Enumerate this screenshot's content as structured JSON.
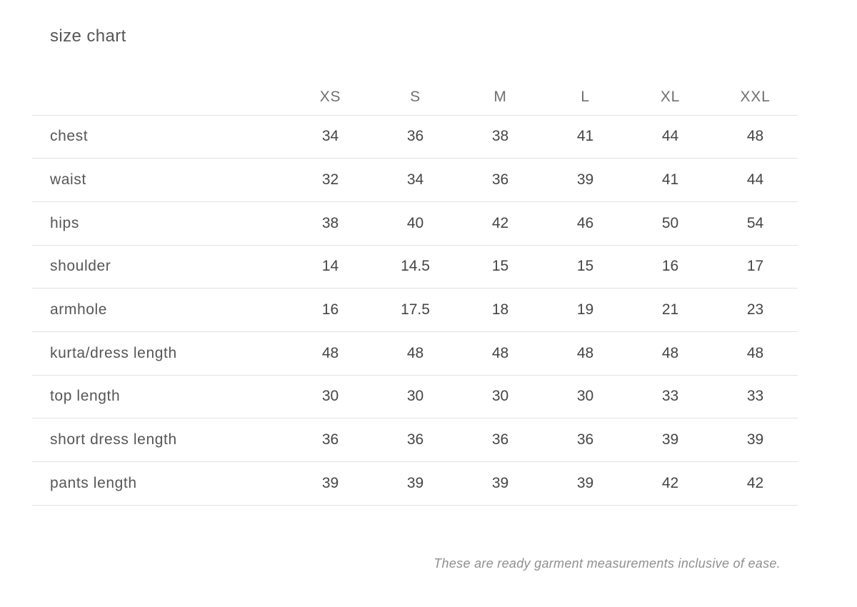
{
  "title": "size chart",
  "footnote": "These are ready garment measurements inclusive of ease.",
  "colors": {
    "background": "#ffffff",
    "title_text": "#565656",
    "header_text": "#6f6f6f",
    "cell_text": "#454545",
    "divider": "#e2e2e2",
    "footnote_text": "#8f8f8f"
  },
  "chart_data": {
    "type": "table",
    "title": "size chart",
    "columns": [
      "XS",
      "S",
      "M",
      "L",
      "XL",
      "XXL"
    ],
    "rows": [
      {
        "label": "chest",
        "values": [
          "34",
          "36",
          "38",
          "41",
          "44",
          "48"
        ]
      },
      {
        "label": "waist",
        "values": [
          "32",
          "34",
          "36",
          "39",
          "41",
          "44"
        ]
      },
      {
        "label": "hips",
        "values": [
          "38",
          "40",
          "42",
          "46",
          "50",
          "54"
        ]
      },
      {
        "label": "shoulder",
        "values": [
          "14",
          "14.5",
          "15",
          "15",
          "16",
          "17"
        ]
      },
      {
        "label": "armhole",
        "values": [
          "16",
          "17.5",
          "18",
          "19",
          "21",
          "23"
        ]
      },
      {
        "label": "kurta/dress length",
        "values": [
          "48",
          "48",
          "48",
          "48",
          "48",
          "48"
        ]
      },
      {
        "label": "top length",
        "values": [
          "30",
          "30",
          "30",
          "30",
          "33",
          "33"
        ]
      },
      {
        "label": "short dress length",
        "values": [
          "36",
          "36",
          "36",
          "36",
          "39",
          "39"
        ]
      },
      {
        "label": "pants length",
        "values": [
          "39",
          "39",
          "39",
          "39",
          "42",
          "42"
        ]
      }
    ],
    "layout": {
      "grid": "horizontal-row-dividers",
      "header_position": "top"
    }
  }
}
